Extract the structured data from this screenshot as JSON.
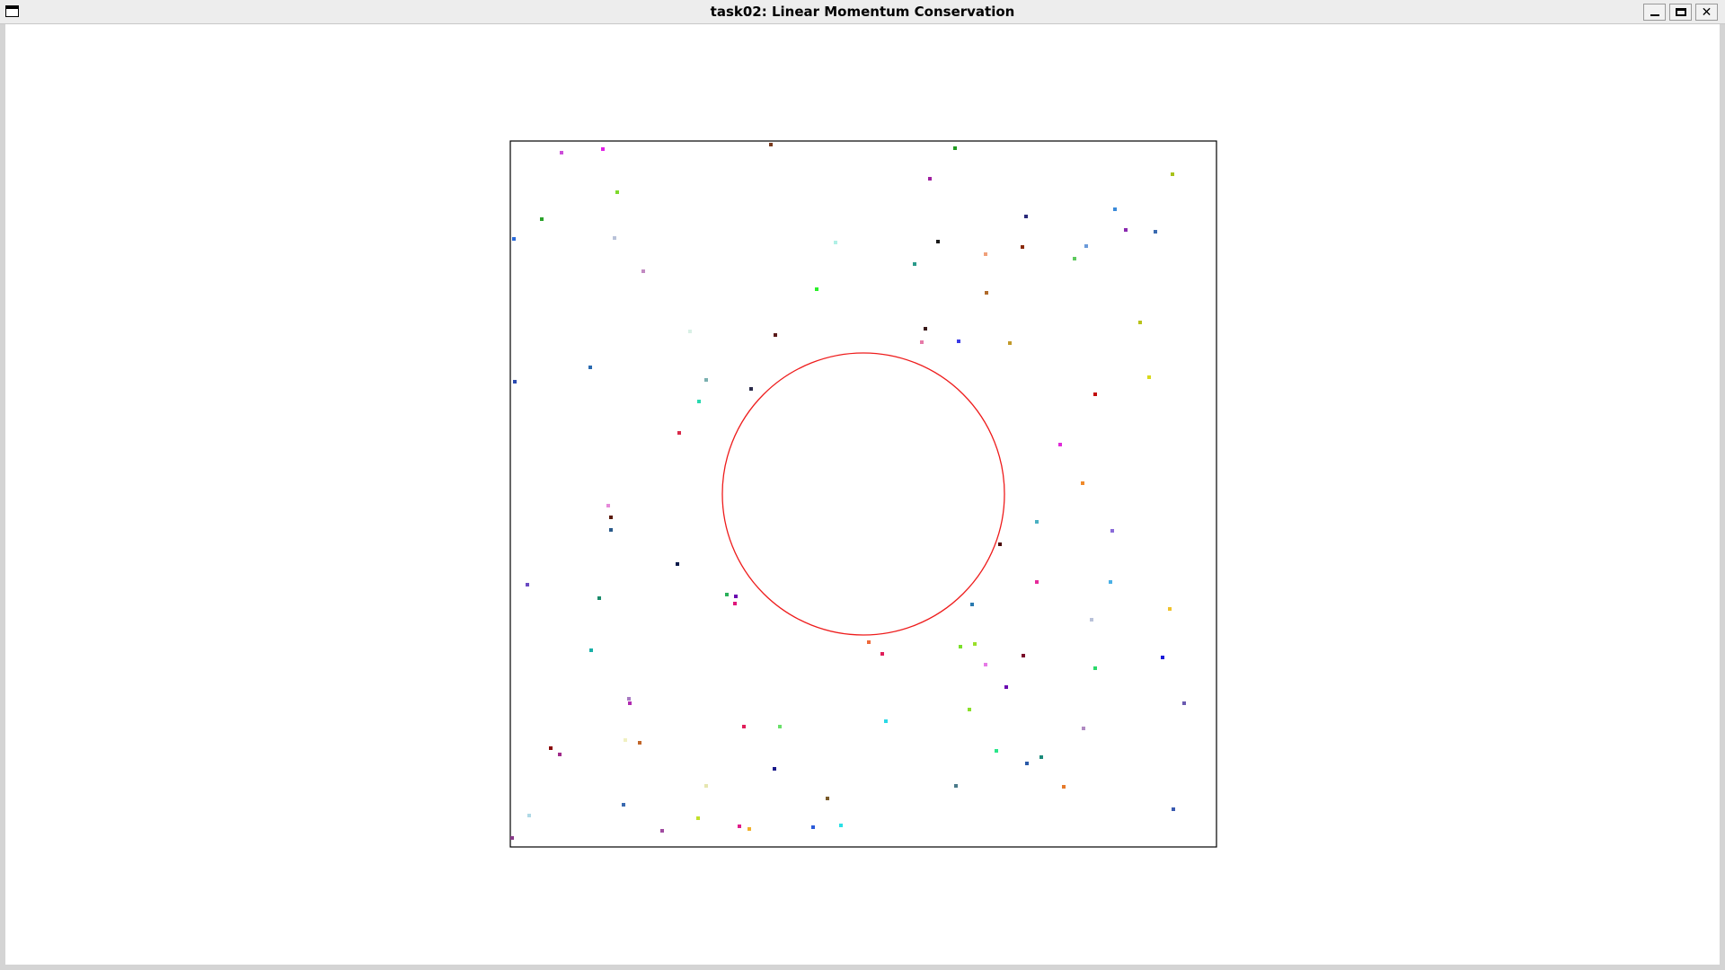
{
  "window": {
    "title": "task02: Linear Momentum Conservation"
  },
  "icons": {
    "system_menu": "window-menu-icon",
    "minimize": "minimize-icon",
    "maximize": "maximize-icon",
    "close": "close-icon"
  },
  "colors": {
    "boundary": "#000000",
    "circle": "#ee1c1c",
    "background": "#ffffff"
  },
  "particles": [
    [
      "#cc4ed9"
    ],
    [
      "#e01ee6"
    ],
    [
      "#7a3b1f"
    ],
    [
      "#229b22"
    ],
    [
      "#a01fa0"
    ],
    [
      "#a8c21a"
    ],
    [
      "#7ed92b"
    ],
    [
      "#2aa22a"
    ],
    [
      "#2a6ad9"
    ],
    [
      "#b9c2d9"
    ],
    [
      "#2a2a7a"
    ],
    [
      "#3a8ad9"
    ],
    [
      "#8a2ab0"
    ],
    [
      "#3a6ab0"
    ],
    [
      "#1a1a1a"
    ],
    [
      "#b0f0e6"
    ],
    [
      "#8a2a0a"
    ],
    [
      "#f0a07a"
    ],
    [
      "#5ec95e"
    ],
    [
      "#6a9ad9"
    ],
    [
      "#2a9a8a"
    ],
    [
      "#c28ac2"
    ],
    [
      "#2af02a"
    ],
    [
      "#b06a2a"
    ],
    [
      "#b9c21a"
    ],
    [
      "#5a1a1a"
    ],
    [
      "#d9f0e6"
    ],
    [
      "#3a1a1a"
    ],
    [
      "#e67aa8"
    ],
    [
      "#3a3ae6"
    ],
    [
      "#c29a2a"
    ],
    [
      "#2a4ab0"
    ],
    [
      "#2a6ab0"
    ],
    [
      "#7ab0b0"
    ],
    [
      "#2a2a4a"
    ],
    [
      "#d9d91a"
    ],
    [
      "#2ad9b0"
    ],
    [
      "#c20a0a"
    ],
    [
      "#d92a4a"
    ],
    [
      "#e02ad9"
    ],
    [
      "#f08a2a"
    ],
    [
      "#e68ad9"
    ],
    [
      "#5a1a0a"
    ],
    [
      "#2a5a8a"
    ],
    [
      "#4ab0c2"
    ],
    [
      "#8a6ad9"
    ],
    [
      "#4a0a0a"
    ],
    [
      "#0a1a4a"
    ],
    [
      "#e62a9a"
    ],
    [
      "#6a4ac2"
    ],
    [
      "#1a8a6a"
    ],
    [
      "#2ab05a"
    ],
    [
      "#e0167a"
    ],
    [
      "#6a0ab0"
    ],
    [
      "#4ab0e6"
    ],
    [
      "#2a7ab0"
    ],
    [
      "#f0c22a"
    ],
    [
      "#b9c2d9"
    ],
    [
      "#ee6a3a"
    ],
    [
      "#e01e5a"
    ],
    [
      "#9ae02a"
    ],
    [
      "#7ae02a"
    ],
    [
      "#7a0a2a"
    ],
    [
      "#1ab0a8"
    ],
    [
      "#2ad96a"
    ],
    [
      "#1a1ad9"
    ],
    [
      "#a87ac2"
    ],
    [
      "#e67ae6"
    ],
    [
      "#6a0ab0"
    ],
    [
      "#b02ab0"
    ],
    [
      "#6a5ab0"
    ],
    [
      "#8ae02a"
    ],
    [
      "#2ad9e6"
    ],
    [
      "#e01e5a"
    ],
    [
      "#6ae06a"
    ],
    [
      "#b08ac2"
    ],
    [
      "#8a0a0a"
    ],
    [
      "#a02a8a"
    ],
    [
      "#f0f0c2"
    ],
    [
      "#c2662a"
    ],
    [
      "#2ae68a"
    ],
    [
      "#1a1a8a"
    ],
    [
      "#2a5aa8"
    ],
    [
      "#1a8a7a"
    ],
    [
      "#4a7a8a"
    ],
    [
      "#e67a2a"
    ],
    [
      "#e6e6b0"
    ],
    [
      "#7a5a2a"
    ],
    [
      "#3a6ab0"
    ],
    [
      "#b0d9e6"
    ],
    [
      "#c2e02a"
    ],
    [
      "#a04aa0"
    ],
    [
      "#e01e8a"
    ],
    [
      "#f0b02a"
    ],
    [
      "#2a5ad9"
    ],
    [
      "#2ae0e6"
    ],
    [
      "#3a5ab0"
    ],
    [
      "#8a3a8a"
    ]
  ]
}
